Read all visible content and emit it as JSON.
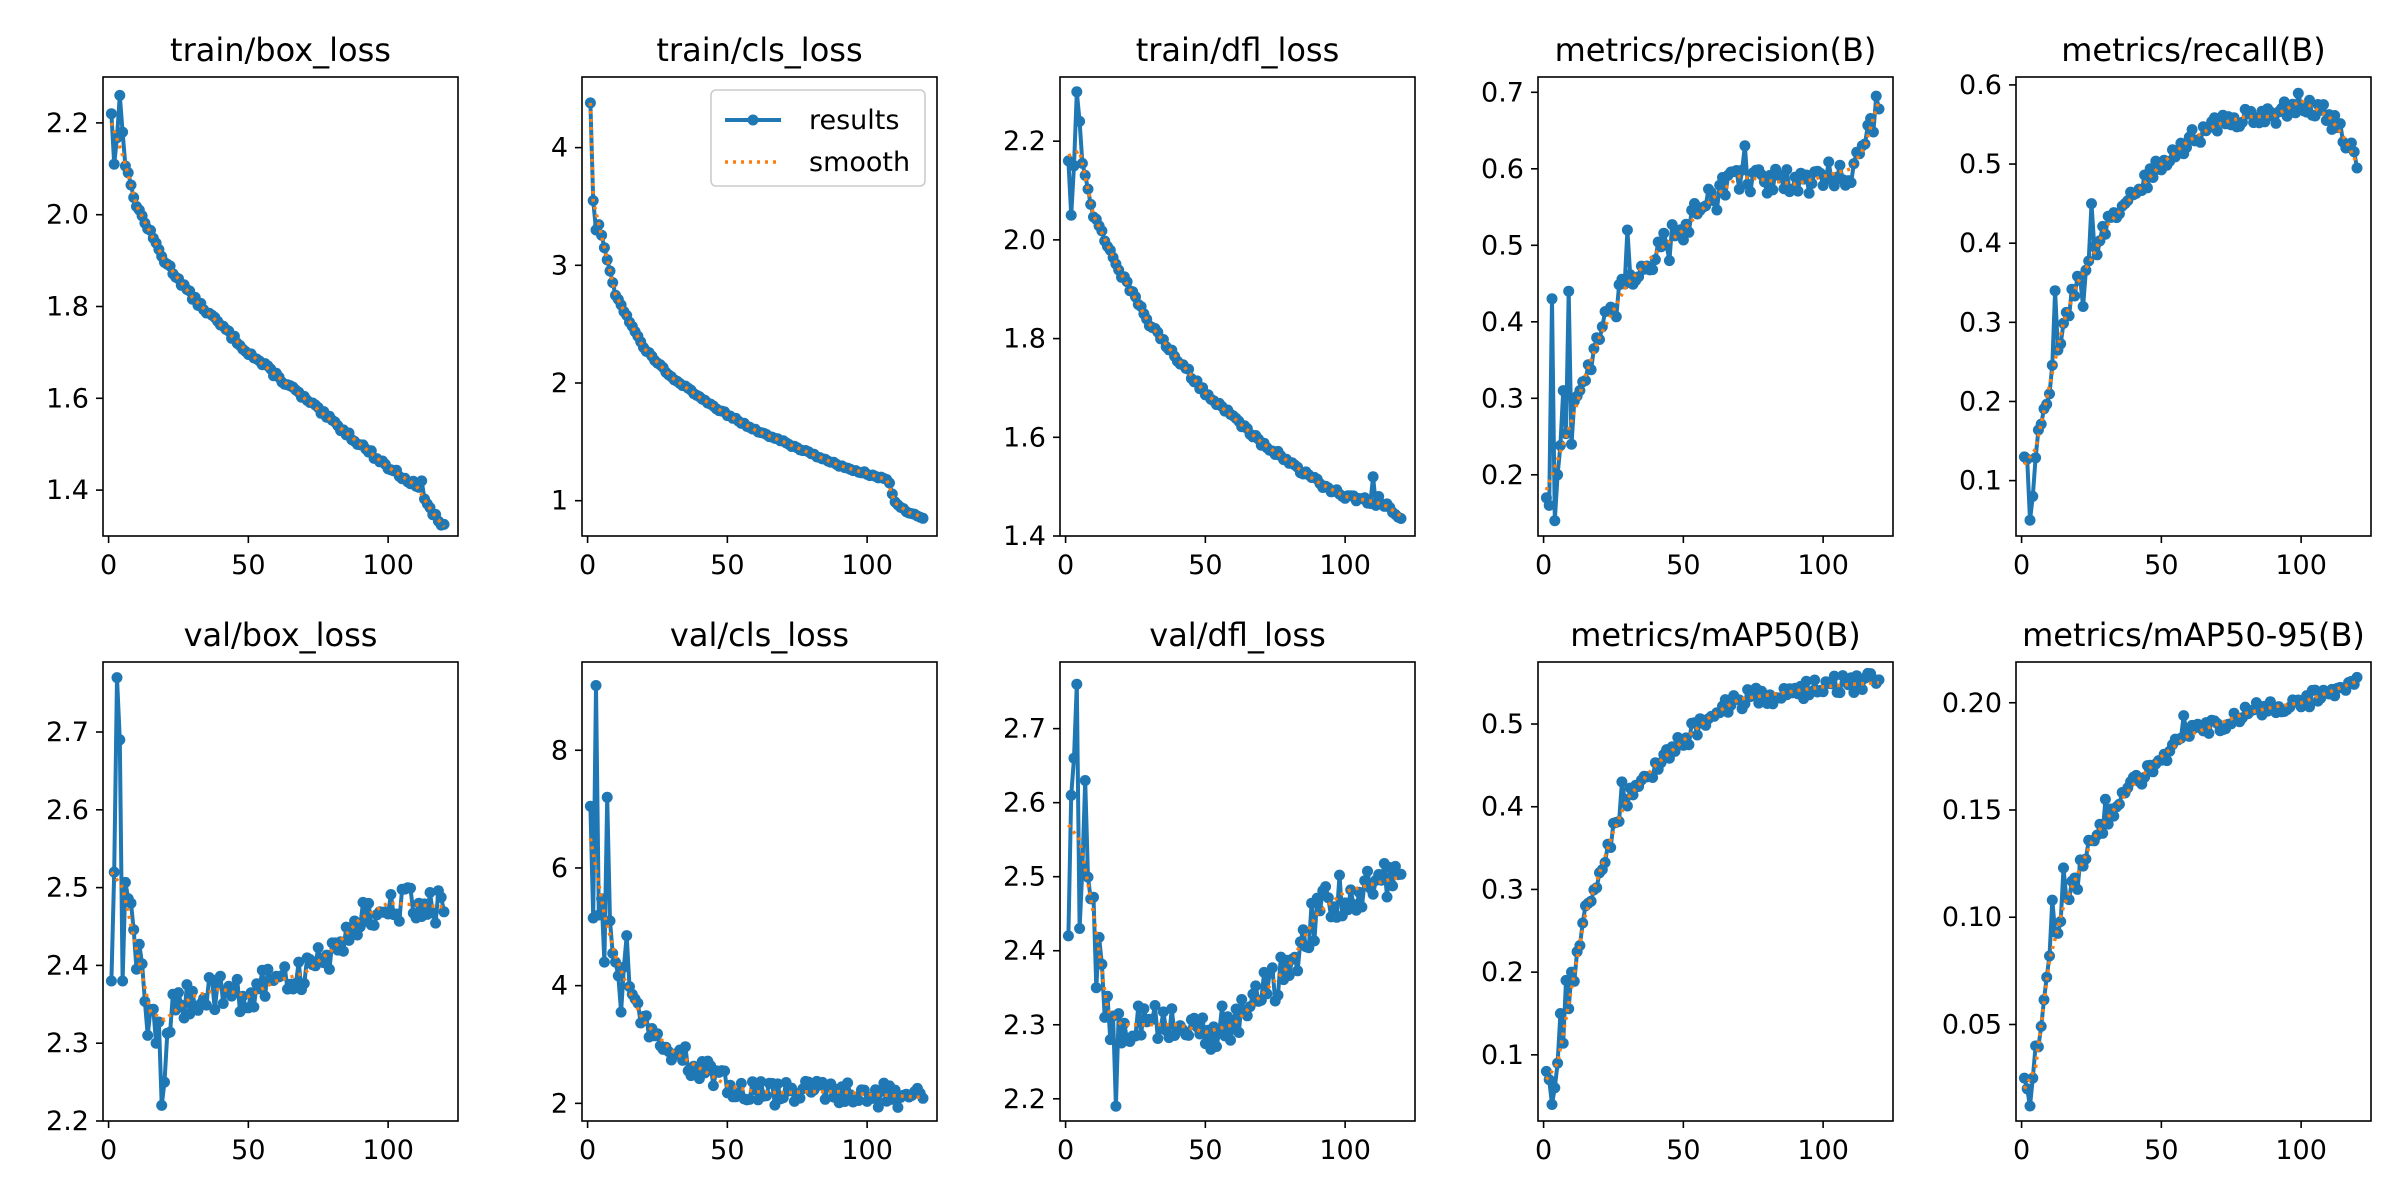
{
  "colors": {
    "results": "#1f77b4",
    "smooth": "#ff7f0e"
  },
  "chart_data": [
    {
      "type": "line",
      "title": "train/box_loss",
      "xlim": [
        -2,
        125
      ],
      "ylim": [
        1.3,
        2.3
      ],
      "xticks": [
        0,
        50,
        100
      ],
      "yticks": [
        1.4,
        1.6,
        1.8,
        2.0,
        2.2
      ],
      "ytick_labels": [
        "1.4",
        "1.6",
        "1.8",
        "2.0",
        "2.2"
      ],
      "noise": 0.006,
      "spikes": [
        [
          1,
          2.22
        ],
        [
          2,
          2.11
        ],
        [
          4,
          2.26
        ],
        [
          5,
          2.18
        ],
        [
          112,
          1.42
        ],
        [
          114,
          1.37
        ]
      ],
      "curve": [
        [
          1,
          2.2
        ],
        [
          5,
          2.13
        ],
        [
          10,
          2.02
        ],
        [
          20,
          1.9
        ],
        [
          30,
          1.82
        ],
        [
          40,
          1.76
        ],
        [
          50,
          1.7
        ],
        [
          60,
          1.65
        ],
        [
          70,
          1.6
        ],
        [
          80,
          1.55
        ],
        [
          90,
          1.5
        ],
        [
          100,
          1.45
        ],
        [
          110,
          1.41
        ],
        [
          116,
          1.35
        ],
        [
          120,
          1.32
        ]
      ]
    },
    {
      "type": "line",
      "title": "train/cls_loss",
      "xlim": [
        -2,
        125
      ],
      "ylim": [
        0.7,
        4.6
      ],
      "xticks": [
        0,
        50,
        100
      ],
      "yticks": [
        1,
        2,
        3,
        4
      ],
      "ytick_labels": [
        "1",
        "2",
        "3",
        "4"
      ],
      "legend": {
        "entries": [
          "results",
          "smooth"
        ],
        "location": "upper-right"
      },
      "noise": 0.01,
      "spikes": [
        [
          1,
          4.38
        ],
        [
          2,
          3.55
        ],
        [
          3,
          3.3
        ],
        [
          108,
          1.15
        ]
      ],
      "curve": [
        [
          1,
          4.38
        ],
        [
          2,
          3.55
        ],
        [
          5,
          3.25
        ],
        [
          10,
          2.75
        ],
        [
          20,
          2.3
        ],
        [
          30,
          2.05
        ],
        [
          40,
          1.88
        ],
        [
          50,
          1.73
        ],
        [
          60,
          1.6
        ],
        [
          70,
          1.5
        ],
        [
          80,
          1.4
        ],
        [
          90,
          1.3
        ],
        [
          100,
          1.23
        ],
        [
          107,
          1.18
        ],
        [
          110,
          0.98
        ],
        [
          115,
          0.9
        ],
        [
          120,
          0.86
        ]
      ]
    },
    {
      "type": "line",
      "title": "train/dfl_loss",
      "xlim": [
        -2,
        125
      ],
      "ylim": [
        1.4,
        2.33
      ],
      "xticks": [
        0,
        50,
        100
      ],
      "yticks": [
        1.4,
        1.6,
        1.8,
        2.0,
        2.2
      ],
      "ytick_labels": [
        "1.4",
        "1.6",
        "1.8",
        "2.0",
        "2.2"
      ],
      "noise": 0.006,
      "spikes": [
        [
          1,
          2.16
        ],
        [
          2,
          2.05
        ],
        [
          3,
          2.15
        ],
        [
          4,
          2.3
        ],
        [
          5,
          2.24
        ],
        [
          110,
          1.52
        ],
        [
          112,
          1.48
        ],
        [
          114,
          1.46
        ]
      ],
      "curve": [
        [
          1,
          2.17
        ],
        [
          5,
          2.18
        ],
        [
          10,
          2.05
        ],
        [
          20,
          1.93
        ],
        [
          30,
          1.83
        ],
        [
          40,
          1.76
        ],
        [
          50,
          1.69
        ],
        [
          60,
          1.64
        ],
        [
          70,
          1.59
        ],
        [
          80,
          1.55
        ],
        [
          90,
          1.51
        ],
        [
          100,
          1.48
        ],
        [
          110,
          1.47
        ],
        [
          115,
          1.46
        ],
        [
          120,
          1.44
        ]
      ]
    },
    {
      "type": "line",
      "title": "metrics/precision(B)",
      "xlim": [
        -2,
        125
      ],
      "ylim": [
        0.12,
        0.72
      ],
      "xticks": [
        0,
        50,
        100
      ],
      "yticks": [
        0.2,
        0.3,
        0.4,
        0.5,
        0.6,
        0.7
      ],
      "ytick_labels": [
        "0.2",
        "0.3",
        "0.4",
        "0.5",
        "0.6",
        "0.7"
      ],
      "noise": 0.02,
      "spikes": [
        [
          1,
          0.17
        ],
        [
          2,
          0.16
        ],
        [
          3,
          0.43
        ],
        [
          4,
          0.14
        ],
        [
          5,
          0.2
        ],
        [
          7,
          0.31
        ],
        [
          9,
          0.44
        ],
        [
          10,
          0.24
        ],
        [
          30,
          0.52
        ],
        [
          45,
          0.48
        ],
        [
          72,
          0.63
        ]
      ],
      "curve": [
        [
          1,
          0.18
        ],
        [
          5,
          0.22
        ],
        [
          10,
          0.27
        ],
        [
          15,
          0.33
        ],
        [
          20,
          0.38
        ],
        [
          30,
          0.45
        ],
        [
          40,
          0.49
        ],
        [
          50,
          0.52
        ],
        [
          60,
          0.56
        ],
        [
          70,
          0.59
        ],
        [
          80,
          0.585
        ],
        [
          90,
          0.58
        ],
        [
          100,
          0.59
        ],
        [
          110,
          0.6
        ],
        [
          115,
          0.63
        ],
        [
          120,
          0.69
        ]
      ]
    },
    {
      "type": "line",
      "title": "metrics/recall(B)",
      "xlim": [
        -2,
        125
      ],
      "ylim": [
        0.03,
        0.61
      ],
      "xticks": [
        0,
        50,
        100
      ],
      "yticks": [
        0.1,
        0.2,
        0.3,
        0.4,
        0.5,
        0.6
      ],
      "ytick_labels": [
        "0.1",
        "0.2",
        "0.3",
        "0.4",
        "0.5",
        "0.6"
      ],
      "noise": 0.012,
      "spikes": [
        [
          1,
          0.13
        ],
        [
          3,
          0.05
        ],
        [
          4,
          0.08
        ],
        [
          12,
          0.34
        ],
        [
          22,
          0.32
        ],
        [
          25,
          0.45
        ]
      ],
      "curve": [
        [
          1,
          0.12
        ],
        [
          5,
          0.14
        ],
        [
          10,
          0.22
        ],
        [
          15,
          0.3
        ],
        [
          20,
          0.35
        ],
        [
          25,
          0.38
        ],
        [
          30,
          0.42
        ],
        [
          40,
          0.46
        ],
        [
          50,
          0.5
        ],
        [
          60,
          0.53
        ],
        [
          70,
          0.55
        ],
        [
          80,
          0.56
        ],
        [
          90,
          0.56
        ],
        [
          100,
          0.58
        ],
        [
          110,
          0.56
        ],
        [
          116,
          0.53
        ],
        [
          120,
          0.5
        ]
      ]
    },
    {
      "type": "line",
      "title": "val/box_loss",
      "xlim": [
        -2,
        125
      ],
      "ylim": [
        2.2,
        2.79
      ],
      "xticks": [
        0,
        50,
        100
      ],
      "yticks": [
        2.2,
        2.3,
        2.4,
        2.5,
        2.6,
        2.7
      ],
      "ytick_labels": [
        "2.2",
        "2.3",
        "2.4",
        "2.5",
        "2.6",
        "2.7"
      ],
      "noise": 0.025,
      "spikes": [
        [
          1,
          2.38
        ],
        [
          2,
          2.52
        ],
        [
          3,
          2.77
        ],
        [
          4,
          2.69
        ],
        [
          5,
          2.38
        ],
        [
          8,
          2.48
        ],
        [
          14,
          2.31
        ],
        [
          17,
          2.3
        ],
        [
          19,
          2.22
        ],
        [
          20,
          2.25
        ]
      ],
      "curve": [
        [
          1,
          2.52
        ],
        [
          5,
          2.5
        ],
        [
          10,
          2.42
        ],
        [
          15,
          2.34
        ],
        [
          20,
          2.33
        ],
        [
          30,
          2.36
        ],
        [
          40,
          2.37
        ],
        [
          50,
          2.36
        ],
        [
          60,
          2.38
        ],
        [
          70,
          2.39
        ],
        [
          80,
          2.42
        ],
        [
          90,
          2.46
        ],
        [
          100,
          2.48
        ],
        [
          110,
          2.478
        ],
        [
          120,
          2.475
        ]
      ]
    },
    {
      "type": "line",
      "title": "val/cls_loss",
      "xlim": [
        -2,
        125
      ],
      "ylim": [
        1.7,
        9.5
      ],
      "xticks": [
        0,
        50,
        100
      ],
      "yticks": [
        2,
        4,
        6,
        8
      ],
      "ytick_labels": [
        "2",
        "4",
        "6",
        "8"
      ],
      "noise": 0.22,
      "spikes": [
        [
          1,
          7.05
        ],
        [
          2,
          5.15
        ],
        [
          3,
          9.1
        ],
        [
          4,
          5.2
        ],
        [
          6,
          4.4
        ],
        [
          7,
          7.2
        ],
        [
          8,
          5.1
        ],
        [
          10,
          4.4
        ],
        [
          12,
          3.55
        ],
        [
          14,
          4.85
        ]
      ],
      "curve": [
        [
          1,
          6.5
        ],
        [
          3,
          6.0
        ],
        [
          6,
          5.2
        ],
        [
          10,
          4.5
        ],
        [
          15,
          3.9
        ],
        [
          20,
          3.4
        ],
        [
          30,
          2.9
        ],
        [
          40,
          2.6
        ],
        [
          50,
          2.3
        ],
        [
          60,
          2.2
        ],
        [
          70,
          2.18
        ],
        [
          80,
          2.2
        ],
        [
          90,
          2.2
        ],
        [
          100,
          2.15
        ],
        [
          110,
          2.13
        ],
        [
          120,
          2.1
        ]
      ]
    },
    {
      "type": "line",
      "title": "val/dfl_loss",
      "xlim": [
        -2,
        125
      ],
      "ylim": [
        2.17,
        2.79
      ],
      "xticks": [
        0,
        50,
        100
      ],
      "yticks": [
        2.2,
        2.3,
        2.4,
        2.5,
        2.6,
        2.7
      ],
      "ytick_labels": [
        "2.2",
        "2.3",
        "2.4",
        "2.5",
        "2.6",
        "2.7"
      ],
      "noise": 0.03,
      "spikes": [
        [
          1,
          2.42
        ],
        [
          2,
          2.61
        ],
        [
          3,
          2.66
        ],
        [
          4,
          2.76
        ],
        [
          5,
          2.43
        ],
        [
          7,
          2.63
        ],
        [
          9,
          2.47
        ],
        [
          11,
          2.35
        ],
        [
          14,
          2.31
        ],
        [
          16,
          2.28
        ],
        [
          18,
          2.19
        ]
      ],
      "curve": [
        [
          1,
          2.57
        ],
        [
          5,
          2.55
        ],
        [
          10,
          2.45
        ],
        [
          15,
          2.32
        ],
        [
          20,
          2.3
        ],
        [
          30,
          2.3
        ],
        [
          40,
          2.3
        ],
        [
          50,
          2.29
        ],
        [
          60,
          2.3
        ],
        [
          70,
          2.34
        ],
        [
          80,
          2.38
        ],
        [
          90,
          2.45
        ],
        [
          100,
          2.48
        ],
        [
          110,
          2.49
        ],
        [
          120,
          2.5
        ]
      ]
    },
    {
      "type": "line",
      "title": "metrics/mAP50(B)",
      "xlim": [
        -2,
        125
      ],
      "ylim": [
        0.02,
        0.575
      ],
      "xticks": [
        0,
        50,
        100
      ],
      "yticks": [
        0.1,
        0.2,
        0.3,
        0.4,
        0.5
      ],
      "ytick_labels": [
        "0.1",
        "0.2",
        "0.3",
        "0.4",
        "0.5"
      ],
      "noise": 0.012,
      "spikes": [
        [
          1,
          0.08
        ],
        [
          2,
          0.07
        ],
        [
          3,
          0.04
        ],
        [
          4,
          0.06
        ],
        [
          5,
          0.09
        ],
        [
          6,
          0.15
        ],
        [
          8,
          0.19
        ],
        [
          10,
          0.2
        ],
        [
          28,
          0.43
        ]
      ],
      "curve": [
        [
          1,
          0.07
        ],
        [
          5,
          0.09
        ],
        [
          10,
          0.18
        ],
        [
          15,
          0.27
        ],
        [
          20,
          0.32
        ],
        [
          25,
          0.37
        ],
        [
          30,
          0.41
        ],
        [
          40,
          0.45
        ],
        [
          50,
          0.48
        ],
        [
          60,
          0.51
        ],
        [
          70,
          0.53
        ],
        [
          80,
          0.535
        ],
        [
          90,
          0.54
        ],
        [
          100,
          0.545
        ],
        [
          110,
          0.548
        ],
        [
          120,
          0.55
        ]
      ]
    },
    {
      "type": "line",
      "title": "metrics/mAP50-95(B)",
      "xlim": [
        -2,
        125
      ],
      "ylim": [
        0.005,
        0.219
      ],
      "xticks": [
        0,
        50,
        100
      ],
      "yticks": [
        0.05,
        0.1,
        0.15,
        0.2
      ],
      "ytick_labels": [
        "0.05",
        "0.10",
        "0.15",
        "0.20"
      ],
      "noise": 0.004,
      "spikes": [
        [
          1,
          0.025
        ],
        [
          2,
          0.02
        ],
        [
          3,
          0.012
        ],
        [
          4,
          0.025
        ],
        [
          5,
          0.04
        ],
        [
          11,
          0.108
        ],
        [
          15,
          0.123
        ],
        [
          20,
          0.113
        ],
        [
          30,
          0.155
        ],
        [
          58,
          0.194
        ]
      ],
      "curve": [
        [
          1,
          0.02
        ],
        [
          5,
          0.03
        ],
        [
          10,
          0.08
        ],
        [
          15,
          0.105
        ],
        [
          20,
          0.12
        ],
        [
          25,
          0.135
        ],
        [
          30,
          0.145
        ],
        [
          40,
          0.162
        ],
        [
          50,
          0.175
        ],
        [
          60,
          0.185
        ],
        [
          70,
          0.19
        ],
        [
          80,
          0.195
        ],
        [
          90,
          0.198
        ],
        [
          100,
          0.2
        ],
        [
          110,
          0.205
        ],
        [
          120,
          0.21
        ]
      ]
    }
  ]
}
